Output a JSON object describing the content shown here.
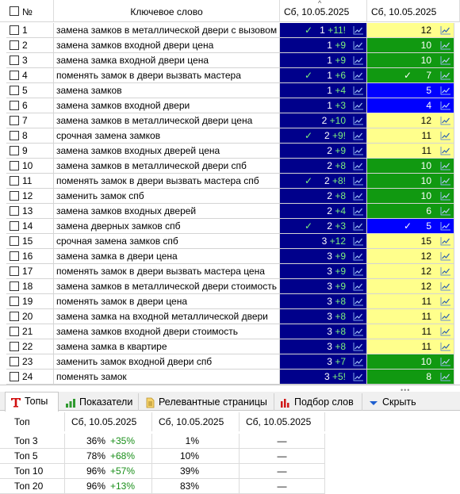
{
  "grid": {
    "columns": {
      "num": "№",
      "keyword": "Ключевое слово",
      "period1": "Сб, 10.05.2025",
      "period2": "Сб, 10.05.2025"
    },
    "sort_indicator": "^",
    "rows": [
      {
        "num": "1",
        "keyword": "замена замков в металлической двери с вызовом",
        "pos1": "1",
        "delta1": "+11!",
        "check1": true,
        "bg1": "navy",
        "pos2": "12",
        "check2": false,
        "bg2": "yellow"
      },
      {
        "num": "2",
        "keyword": "замена замков входной двери цена",
        "pos1": "1",
        "delta1": "+9",
        "check1": false,
        "bg1": "navy",
        "pos2": "10",
        "check2": false,
        "bg2": "green"
      },
      {
        "num": "3",
        "keyword": "замена замка входной двери цена",
        "pos1": "1",
        "delta1": "+9",
        "check1": false,
        "bg1": "navy",
        "pos2": "10",
        "check2": false,
        "bg2": "green"
      },
      {
        "num": "4",
        "keyword": "поменять замок в двери вызвать мастера",
        "pos1": "1",
        "delta1": "+6",
        "check1": true,
        "bg1": "navy",
        "pos2": "7",
        "check2": true,
        "bg2": "green"
      },
      {
        "num": "5",
        "keyword": "замена замков",
        "pos1": "1",
        "delta1": "+4",
        "check1": false,
        "bg1": "navy",
        "pos2": "5",
        "check2": false,
        "bg2": "blue"
      },
      {
        "num": "6",
        "keyword": "замена замков входной двери",
        "pos1": "1",
        "delta1": "+3",
        "check1": false,
        "bg1": "navy",
        "pos2": "4",
        "check2": false,
        "bg2": "blue"
      },
      {
        "num": "7",
        "keyword": "замена замков в металлической двери цена",
        "pos1": "2",
        "delta1": "+10",
        "check1": false,
        "bg1": "navy",
        "pos2": "12",
        "check2": false,
        "bg2": "yellow"
      },
      {
        "num": "8",
        "keyword": "срочная замена замков",
        "pos1": "2",
        "delta1": "+9!",
        "check1": true,
        "bg1": "navy",
        "pos2": "11",
        "check2": false,
        "bg2": "yellow"
      },
      {
        "num": "9",
        "keyword": "замена замков входных дверей цена",
        "pos1": "2",
        "delta1": "+9",
        "check1": false,
        "bg1": "navy",
        "pos2": "11",
        "check2": false,
        "bg2": "yellow"
      },
      {
        "num": "10",
        "keyword": "замена замков в металлической двери спб",
        "pos1": "2",
        "delta1": "+8",
        "check1": false,
        "bg1": "navy",
        "pos2": "10",
        "check2": false,
        "bg2": "green"
      },
      {
        "num": "11",
        "keyword": "поменять замок в двери вызвать мастера спб",
        "pos1": "2",
        "delta1": "+8!",
        "check1": true,
        "bg1": "navy",
        "pos2": "10",
        "check2": false,
        "bg2": "green"
      },
      {
        "num": "12",
        "keyword": "заменить замок спб",
        "pos1": "2",
        "delta1": "+8",
        "check1": false,
        "bg1": "navy",
        "pos2": "10",
        "check2": false,
        "bg2": "green"
      },
      {
        "num": "13",
        "keyword": "замена замков входных дверей",
        "pos1": "2",
        "delta1": "+4",
        "check1": false,
        "bg1": "navy",
        "pos2": "6",
        "check2": false,
        "bg2": "green"
      },
      {
        "num": "14",
        "keyword": "замена дверных замков спб",
        "pos1": "2",
        "delta1": "+3",
        "check1": true,
        "bg1": "navy",
        "pos2": "5",
        "check2": true,
        "bg2": "blue"
      },
      {
        "num": "15",
        "keyword": "срочная замена замков спб",
        "pos1": "3",
        "delta1": "+12",
        "check1": false,
        "bg1": "navy",
        "pos2": "15",
        "check2": false,
        "bg2": "yellow"
      },
      {
        "num": "16",
        "keyword": "замена замка в двери цена",
        "pos1": "3",
        "delta1": "+9",
        "check1": false,
        "bg1": "navy",
        "pos2": "12",
        "check2": false,
        "bg2": "yellow"
      },
      {
        "num": "17",
        "keyword": "поменять замок в двери вызвать мастера цена",
        "pos1": "3",
        "delta1": "+9",
        "check1": false,
        "bg1": "navy",
        "pos2": "12",
        "check2": false,
        "bg2": "yellow"
      },
      {
        "num": "18",
        "keyword": "замена замков в металлической двери стоимость",
        "pos1": "3",
        "delta1": "+9",
        "check1": false,
        "bg1": "navy",
        "pos2": "12",
        "check2": false,
        "bg2": "yellow"
      },
      {
        "num": "19",
        "keyword": "поменять замок в двери цена",
        "pos1": "3",
        "delta1": "+8",
        "check1": false,
        "bg1": "navy",
        "pos2": "11",
        "check2": false,
        "bg2": "yellow"
      },
      {
        "num": "20",
        "keyword": "замена замка на входной металлической двери",
        "pos1": "3",
        "delta1": "+8",
        "check1": false,
        "bg1": "navy",
        "pos2": "11",
        "check2": false,
        "bg2": "yellow"
      },
      {
        "num": "21",
        "keyword": "замена замков входной двери стоимость",
        "pos1": "3",
        "delta1": "+8",
        "check1": false,
        "bg1": "navy",
        "pos2": "11",
        "check2": false,
        "bg2": "yellow"
      },
      {
        "num": "22",
        "keyword": "замена замка в квартире",
        "pos1": "3",
        "delta1": "+8",
        "check1": false,
        "bg1": "navy",
        "pos2": "11",
        "check2": false,
        "bg2": "yellow"
      },
      {
        "num": "23",
        "keyword": "заменить замок входной двери спб",
        "pos1": "3",
        "delta1": "+7",
        "check1": false,
        "bg1": "navy",
        "pos2": "10",
        "check2": false,
        "bg2": "green"
      },
      {
        "num": "24",
        "keyword": "поменять замок",
        "pos1": "3",
        "delta1": "+5!",
        "check1": false,
        "bg1": "navy",
        "pos2": "8",
        "check2": false,
        "bg2": "green"
      }
    ]
  },
  "colors": {
    "navy": "#00008b",
    "blue": "#0000ff",
    "green": "#119911",
    "yellow": "#ffff8c",
    "delta_green": "#1a8f1a",
    "trend_blue": "#2b5fb3"
  },
  "icons": {
    "trend": "trend-chart-icon",
    "check": "checkmark-icon"
  },
  "tabs": [
    {
      "label": "Топы",
      "icon": "t-letter-icon",
      "active": true
    },
    {
      "label": "Показатели",
      "icon": "bar-chart-icon",
      "active": false
    },
    {
      "label": "Релевантные страницы",
      "icon": "document-icon",
      "active": false
    },
    {
      "label": "Подбор слов",
      "icon": "red-bars-icon",
      "active": false
    },
    {
      "label": "Скрыть",
      "icon": "triangle-down-icon",
      "active": false
    }
  ],
  "tops": {
    "columns": {
      "top": "Топ",
      "a": "Сб, 10.05.2025",
      "b": "Сб, 10.05.2025",
      "c": "Сб, 10.05.2025"
    },
    "rows": [
      {
        "label": "Топ 3",
        "a_pct": "36%",
        "a_delta": "+35%",
        "b_pct": "1%",
        "c": "—"
      },
      {
        "label": "Топ 5",
        "a_pct": "78%",
        "a_delta": "+68%",
        "b_pct": "10%",
        "c": "—"
      },
      {
        "label": "Топ 10",
        "a_pct": "96%",
        "a_delta": "+57%",
        "b_pct": "39%",
        "c": "—"
      },
      {
        "label": "Топ 20",
        "a_pct": "96%",
        "a_delta": "+13%",
        "b_pct": "83%",
        "c": "—"
      }
    ]
  }
}
